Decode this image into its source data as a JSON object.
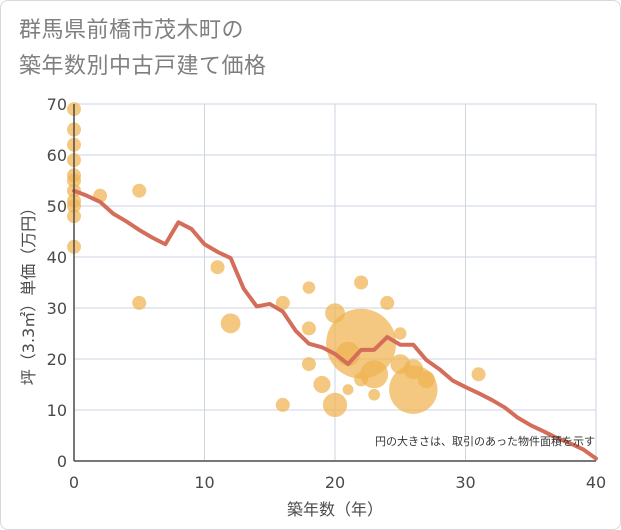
{
  "title": "群馬県前橋市茂木町の\n築年数別中古戸建て価格",
  "chart_data": {
    "type": "scatter",
    "title": "群馬県前橋市茂木町の築年数別中古戸建て価格",
    "xlabel": "築年数（年）",
    "ylabel": "坪（3.3㎡）単価（万円）",
    "xlim": [
      0,
      40
    ],
    "ylim": [
      0,
      70
    ],
    "xticks": [
      "0",
      "10",
      "20",
      "30",
      "40"
    ],
    "yticks": [
      "0",
      "10",
      "20",
      "30",
      "40",
      "50",
      "60",
      "70"
    ],
    "grid": true,
    "note": "円の大きさは、取引のあった物件面積を示す",
    "colors": {
      "bubble": "#f0b351",
      "line": "#d46e5a",
      "grid": "#ccd6e0",
      "axis": "#4a4a4a"
    },
    "bubbles": [
      {
        "x": 0,
        "y": 69,
        "size": 1
      },
      {
        "x": 0,
        "y": 65,
        "size": 1
      },
      {
        "x": 0,
        "y": 62,
        "size": 1
      },
      {
        "x": 0,
        "y": 59,
        "size": 1
      },
      {
        "x": 0,
        "y": 56,
        "size": 1
      },
      {
        "x": 0,
        "y": 55,
        "size": 1
      },
      {
        "x": 0,
        "y": 53,
        "size": 1
      },
      {
        "x": 0,
        "y": 51,
        "size": 1
      },
      {
        "x": 0,
        "y": 50,
        "size": 1
      },
      {
        "x": 0,
        "y": 48,
        "size": 1
      },
      {
        "x": 0,
        "y": 42,
        "size": 1
      },
      {
        "x": 2,
        "y": 52,
        "size": 1
      },
      {
        "x": 5,
        "y": 53,
        "size": 1
      },
      {
        "x": 5,
        "y": 31,
        "size": 1
      },
      {
        "x": 11,
        "y": 38,
        "size": 1
      },
      {
        "x": 12,
        "y": 27,
        "size": 2
      },
      {
        "x": 16,
        "y": 31,
        "size": 1
      },
      {
        "x": 16,
        "y": 11,
        "size": 1
      },
      {
        "x": 18,
        "y": 34,
        "size": 0.8
      },
      {
        "x": 18,
        "y": 26,
        "size": 1
      },
      {
        "x": 18,
        "y": 19,
        "size": 1
      },
      {
        "x": 19,
        "y": 15,
        "size": 1.5
      },
      {
        "x": 20,
        "y": 29,
        "size": 2
      },
      {
        "x": 20,
        "y": 11,
        "size": 3
      },
      {
        "x": 21,
        "y": 21,
        "size": 3
      },
      {
        "x": 21,
        "y": 14,
        "size": 0.6
      },
      {
        "x": 22,
        "y": 35,
        "size": 1
      },
      {
        "x": 22,
        "y": 23,
        "size": 25
      },
      {
        "x": 22,
        "y": 16,
        "size": 1
      },
      {
        "x": 23,
        "y": 17,
        "size": 4
      },
      {
        "x": 23,
        "y": 13,
        "size": 0.7
      },
      {
        "x": 24,
        "y": 31,
        "size": 1
      },
      {
        "x": 25,
        "y": 25,
        "size": 0.8
      },
      {
        "x": 25,
        "y": 19,
        "size": 2
      },
      {
        "x": 26,
        "y": 14,
        "size": 12
      },
      {
        "x": 26,
        "y": 18,
        "size": 2
      },
      {
        "x": 27,
        "y": 16,
        "size": 1.5
      },
      {
        "x": 31,
        "y": 17,
        "size": 1
      }
    ],
    "trend": {
      "x": [
        0,
        1,
        2,
        3,
        4,
        5,
        6,
        7,
        8,
        9,
        10,
        11,
        12,
        13,
        14,
        15,
        16,
        17,
        18,
        19,
        20,
        21,
        22,
        23,
        24,
        25,
        26,
        27,
        28,
        29,
        30,
        31,
        32,
        33,
        34,
        35,
        36,
        37,
        38,
        39,
        40
      ],
      "y": [
        53,
        52,
        50.8,
        48.5,
        47,
        45.3,
        43.8,
        42.5,
        46.8,
        45.5,
        42.5,
        41,
        39.8,
        33.8,
        30.3,
        30.8,
        29.3,
        25.5,
        23,
        22.3,
        21,
        19,
        21.8,
        21.8,
        24.3,
        22.8,
        22.8,
        19.8,
        18,
        15.8,
        14.5,
        13.3,
        12,
        10.5,
        8.5,
        7,
        5.8,
        4.5,
        3.5,
        2.3,
        0.5
      ]
    }
  }
}
